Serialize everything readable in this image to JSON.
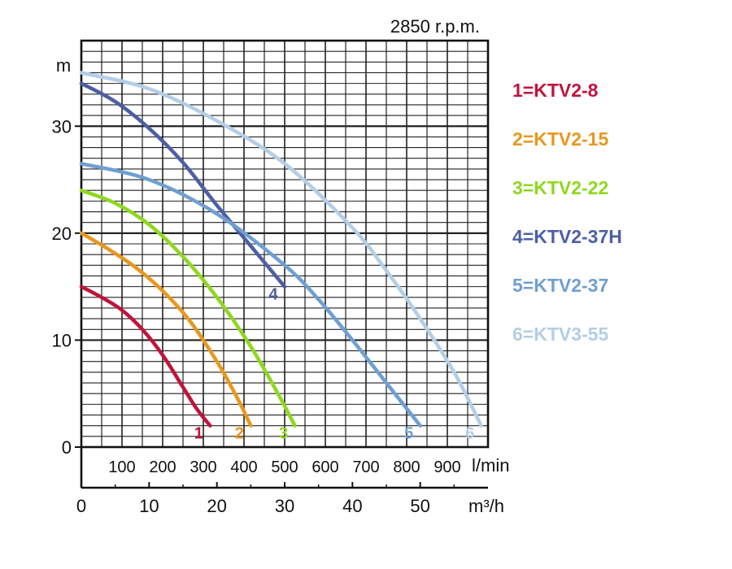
{
  "chart_data": {
    "type": "line",
    "title": "2850 r.p.m.",
    "ylabel": "m",
    "x_unit_top": "l/min",
    "x_unit_bottom": "m³/h",
    "xlim_m3h": [
      0,
      60
    ],
    "ylim": [
      0,
      38
    ],
    "grid": true,
    "legend_placement": "right",
    "y_ticks": [
      "0",
      "10",
      "20",
      "30"
    ],
    "y_tick_values": [
      0,
      10,
      20,
      30
    ],
    "x_ticks_lmin": [
      "100",
      "200",
      "300",
      "400",
      "500",
      "600",
      "700",
      "800",
      "900"
    ],
    "x_tick_values_lmin": [
      100,
      200,
      300,
      400,
      500,
      600,
      700,
      800,
      900
    ],
    "x_ticks_m3h": [
      "0",
      "10",
      "20",
      "30",
      "40",
      "50"
    ],
    "x_tick_values_m3h": [
      0,
      10,
      20,
      30,
      40,
      50
    ],
    "series": [
      {
        "name": "1=KTV2-8",
        "label": "1",
        "color": "#c0143c",
        "x": [
          0,
          3,
          6,
          9,
          12,
          15,
          17,
          19
        ],
        "y": [
          15,
          14,
          12.8,
          11,
          8.6,
          5.6,
          3.6,
          2
        ]
      },
      {
        "name": "2=KTV2-15",
        "label": "2",
        "color": "#e8981e",
        "x": [
          0,
          4,
          8,
          12,
          16,
          20,
          23,
          25
        ],
        "y": [
          20,
          18.5,
          16.8,
          14.6,
          11.8,
          8,
          4.6,
          2
        ]
      },
      {
        "name": "3=KTV2-22",
        "label": "3",
        "color": "#8ed81e",
        "x": [
          0,
          5,
          10,
          15,
          20,
          25,
          29,
          31.5
        ],
        "y": [
          24,
          22.8,
          20.8,
          17.8,
          14,
          9.4,
          5,
          2
        ]
      },
      {
        "name": "4=KTV2-37H",
        "label": "4",
        "color": "#4d5fa4",
        "x": [
          0,
          5,
          10,
          15,
          20,
          25,
          30
        ],
        "y": [
          34,
          32.3,
          29.8,
          26.6,
          22.6,
          18.8,
          15
        ]
      },
      {
        "name": "5=KTV2-37",
        "label": "5",
        "color": "#6f9fd2",
        "x": [
          0,
          10,
          20,
          30,
          35,
          40,
          45,
          50
        ],
        "y": [
          26.5,
          25,
          21.8,
          17,
          13.8,
          10,
          6,
          2
        ]
      },
      {
        "name": "6=KTV3-55",
        "label": "6",
        "color": "#b3cee6",
        "x": [
          0,
          10,
          20,
          30,
          40,
          45,
          50,
          55,
          59
        ],
        "y": [
          35,
          33.5,
          30.5,
          26.5,
          20.5,
          16.5,
          12,
          7,
          2
        ]
      }
    ]
  }
}
